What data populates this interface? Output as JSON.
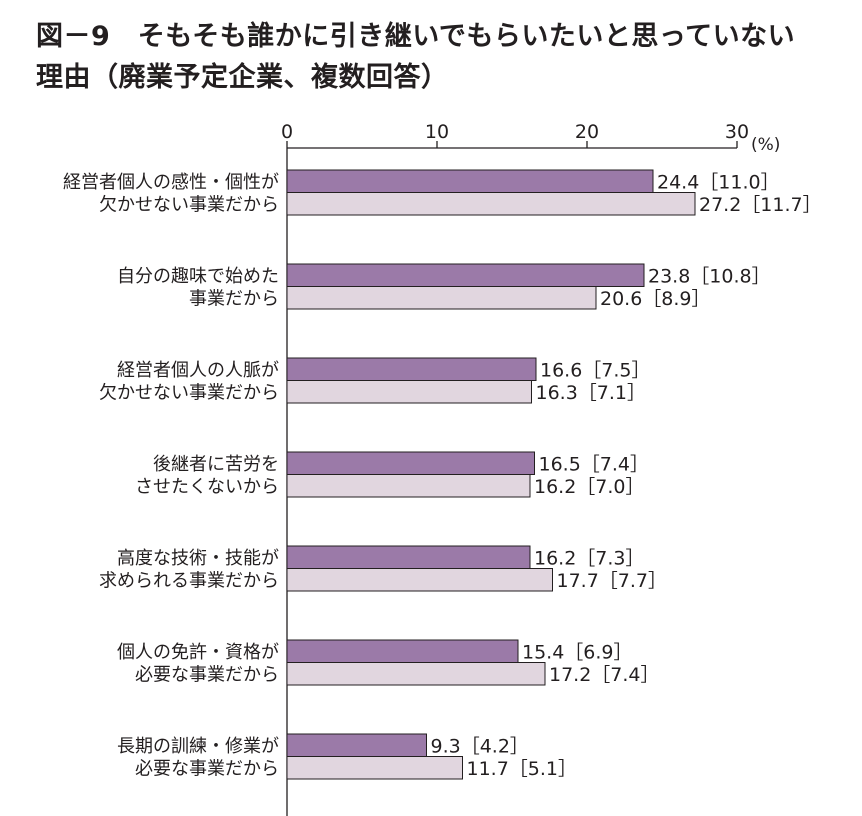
{
  "figure": {
    "title_line1": "図－9　そもそも誰かに引き継いでもらいたいと思っていない",
    "title_line2": "理由（廃業予定企業、複数回答）"
  },
  "chart_data": {
    "type": "bar",
    "orientation": "horizontal",
    "unit_label": "(%)",
    "xlim": [
      0,
      30
    ],
    "xticks": [
      0,
      10,
      20,
      30
    ],
    "grid": false,
    "legend": "none",
    "colors": {
      "series1": "#9b7aa8",
      "series2": "#e1d6df",
      "stroke": "#231f20"
    },
    "categories": [
      [
        "経営者個人の感性・個性が",
        "欠かせない事業だから"
      ],
      [
        "自分の趣味で始めた",
        "事業だから"
      ],
      [
        "経営者個人の人脈が",
        "欠かせない事業だから"
      ],
      [
        "後継者に苦労を",
        "させたくないから"
      ],
      [
        "高度な技術・技能が",
        "求められる事業だから"
      ],
      [
        "個人の免許・資格が",
        "必要な事業だから"
      ],
      [
        "長期の訓練・修業が",
        "必要な事業だから"
      ]
    ],
    "series": [
      {
        "values": [
          24.4,
          23.8,
          16.6,
          16.5,
          16.2,
          15.4,
          9.3
        ],
        "labels": [
          "24.4［11.0］",
          "23.8［10.8］",
          "16.6［7.5］",
          "16.5［7.4］",
          "16.2［7.3］",
          "15.4［6.9］",
          "9.3［4.2］"
        ]
      },
      {
        "values": [
          27.2,
          20.6,
          16.3,
          16.2,
          17.7,
          17.2,
          11.7
        ],
        "labels": [
          "27.2［11.7］",
          "20.6［8.9］",
          "16.3［7.1］",
          "16.2［7.0］",
          "17.7［7.7］",
          "17.2［7.4］",
          "11.7［5.1］"
        ]
      }
    ]
  }
}
